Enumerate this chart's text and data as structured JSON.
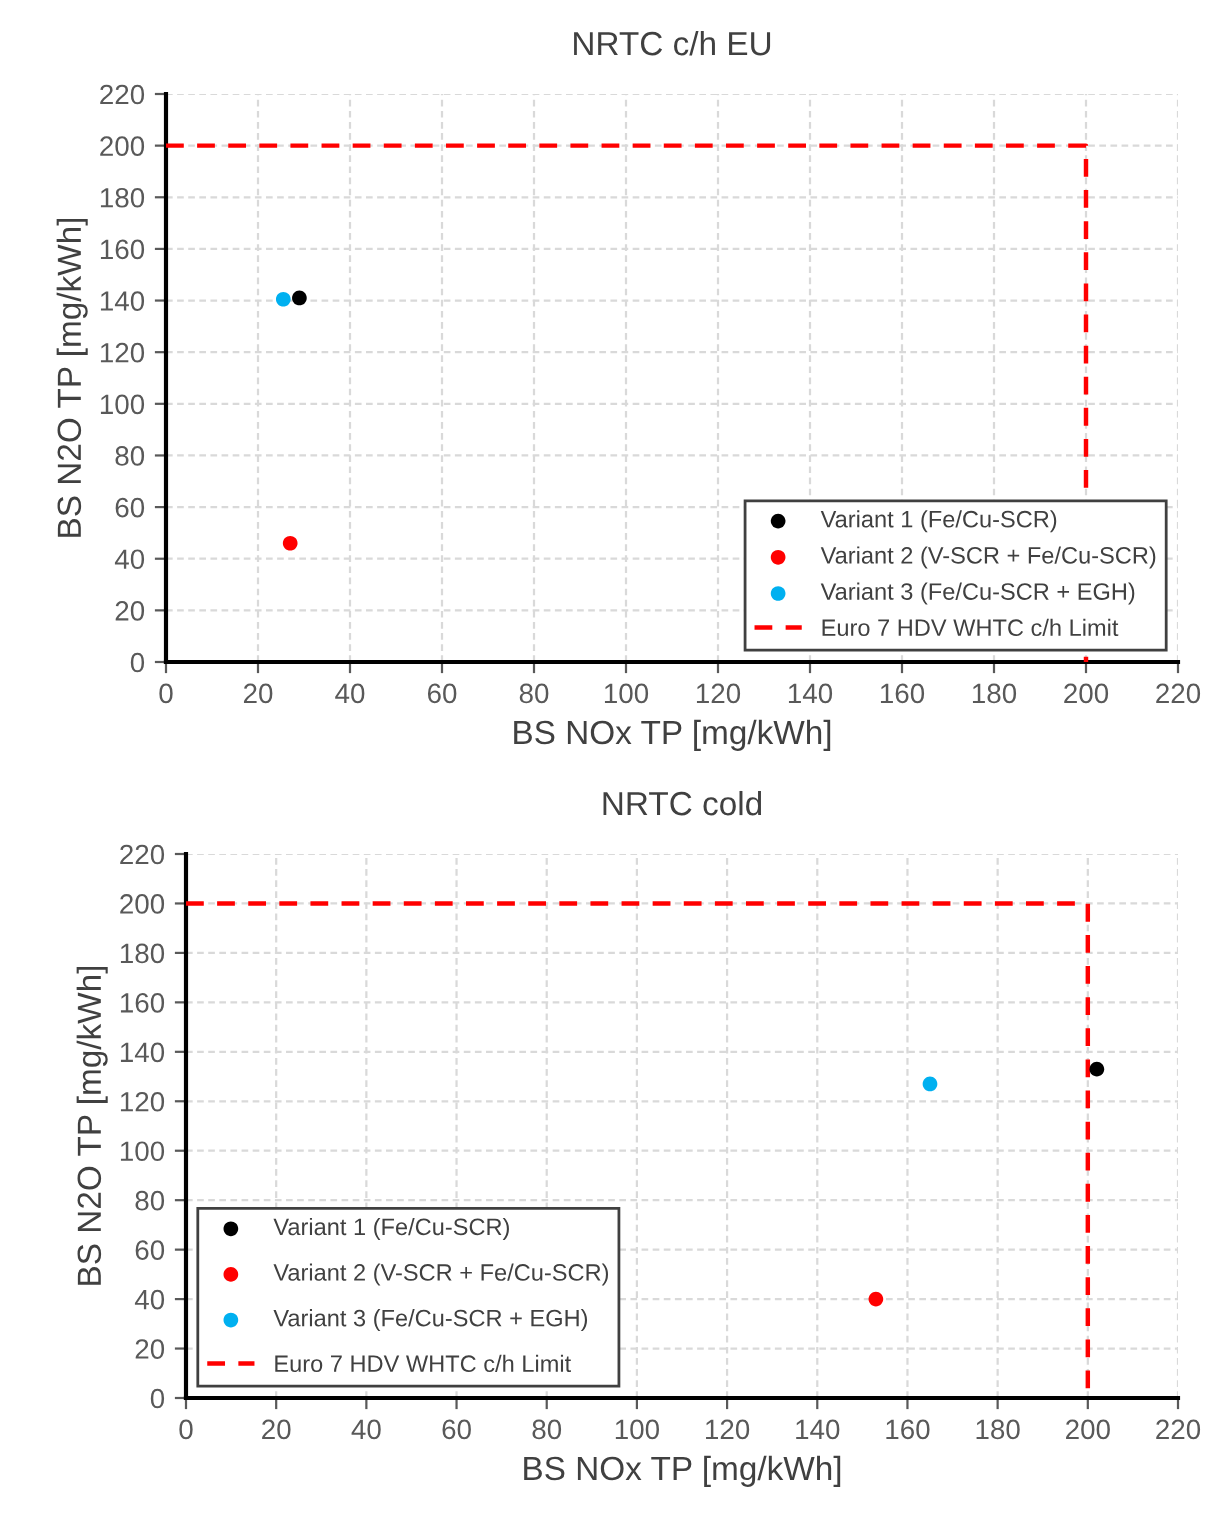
{
  "chart_data": [
    {
      "type": "scatter",
      "title": "NRTC c/h EU",
      "xlabel": "BS NOx TP [mg/kWh]",
      "ylabel": "BS N2O TP [mg/kWh]",
      "xlim": [
        0,
        220
      ],
      "ylim": [
        0,
        220
      ],
      "xticks": [
        0,
        20,
        40,
        60,
        80,
        100,
        120,
        140,
        160,
        180,
        200,
        220
      ],
      "yticks": [
        0,
        20,
        40,
        60,
        80,
        100,
        120,
        140,
        160,
        180,
        200,
        220
      ],
      "grid": true,
      "legend": "bottom right",
      "marker": "circle",
      "series": [
        {
          "name": "Variant 1 (Fe/Cu-SCR)",
          "color": "#000000",
          "x": [
            29
          ],
          "values": [
            141
          ]
        },
        {
          "name": "Variant 2 (V-SCR + Fe/Cu-SCR)",
          "color": "#ff0000",
          "x": [
            27
          ],
          "values": [
            46
          ]
        },
        {
          "name": "Variant 3 (Fe/Cu-SCR + EGH)",
          "color": "#00b0f0",
          "x": [
            25.5
          ],
          "values": [
            140.5
          ]
        },
        {
          "name": "Euro 7 HDV WHTC c/h Limit",
          "type": "line",
          "line_style": "dashed",
          "marker": "none",
          "color": "#ff0000",
          "x": [
            0,
            200,
            200
          ],
          "values": [
            200,
            200,
            0
          ]
        }
      ]
    },
    {
      "type": "scatter",
      "title": "NRTC cold",
      "xlabel": "BS NOx TP [mg/kWh]",
      "ylabel": "BS N2O TP [mg/kWh]",
      "xlim": [
        0,
        220
      ],
      "ylim": [
        0,
        220
      ],
      "xticks": [
        0,
        20,
        40,
        60,
        80,
        100,
        120,
        140,
        160,
        180,
        200,
        220
      ],
      "yticks": [
        0,
        20,
        40,
        60,
        80,
        100,
        120,
        140,
        160,
        180,
        200,
        220
      ],
      "grid": true,
      "legend": "bottom left",
      "marker": "circle",
      "series": [
        {
          "name": "Variant 1 (Fe/Cu-SCR)",
          "color": "#000000",
          "x": [
            202
          ],
          "values": [
            133
          ]
        },
        {
          "name": "Variant 2 (V-SCR + Fe/Cu-SCR)",
          "color": "#ff0000",
          "x": [
            153
          ],
          "values": [
            40
          ]
        },
        {
          "name": "Variant 3 (Fe/Cu-SCR + EGH)",
          "color": "#00b0f0",
          "x": [
            165
          ],
          "values": [
            127
          ]
        },
        {
          "name": "Euro 7 HDV WHTC c/h Limit",
          "type": "line",
          "line_style": "dashed",
          "marker": "none",
          "color": "#ff0000",
          "x": [
            0,
            200,
            200
          ],
          "values": [
            200,
            200,
            0
          ]
        }
      ]
    }
  ]
}
